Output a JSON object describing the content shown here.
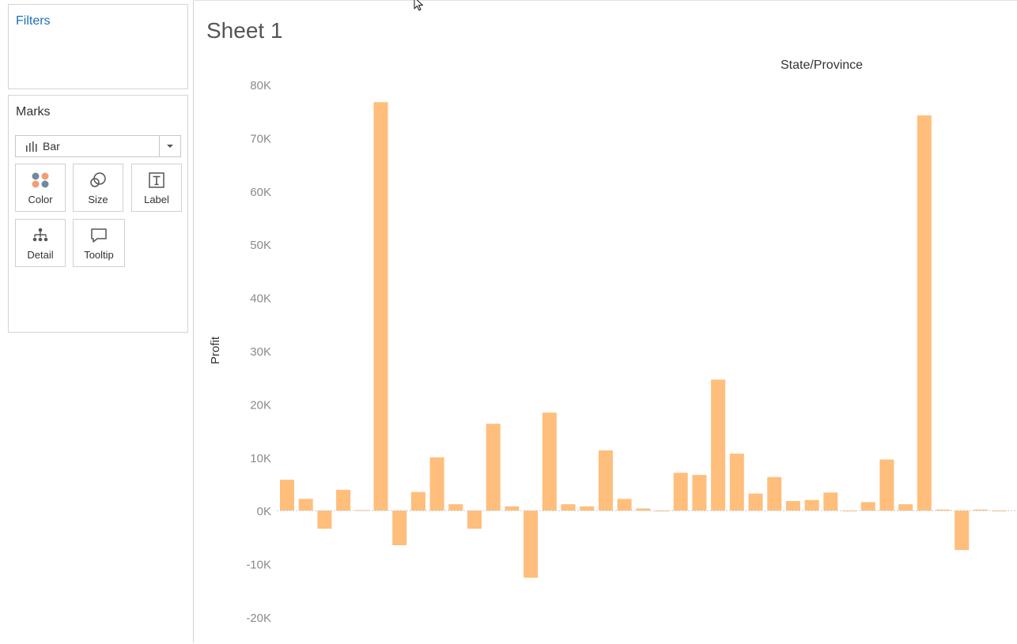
{
  "filters": {
    "title": "Filters"
  },
  "marks": {
    "title": "Marks",
    "mark_type": "Bar",
    "mark_type_icon": "bar-chart-icon",
    "cards": [
      {
        "label": "Color",
        "icon": "color-dots-icon"
      },
      {
        "label": "Size",
        "icon": "size-circles-icon"
      },
      {
        "label": "Label",
        "icon": "text-label-icon"
      },
      {
        "label": "Detail",
        "icon": "detail-hierarchy-icon"
      },
      {
        "label": "Tooltip",
        "icon": "tooltip-bubble-icon"
      }
    ]
  },
  "sheet": {
    "title": "Sheet 1",
    "column_header": "State/Province",
    "y_axis_label": "Profit"
  },
  "colors": {
    "bar": "#ffbe7b",
    "axis_tick": "#8a8a8a",
    "title_filters": "#1f6fb2"
  },
  "chart_data": {
    "type": "bar",
    "title": "",
    "xlabel": "State/Province",
    "ylabel": "Profit",
    "ylim": [
      -20000,
      80000
    ],
    "yticks": [
      "80K",
      "70K",
      "60K",
      "50K",
      "40K",
      "30K",
      "20K",
      "10K",
      "0K",
      "-10K",
      "-20K"
    ],
    "values": [
      5800,
      2200,
      -3400,
      3900,
      100,
      76700,
      -6500,
      3500,
      10000,
      1200,
      -3400,
      16300,
      800,
      -12600,
      18400,
      1200,
      800,
      11300,
      2200,
      400,
      -100,
      7100,
      6700,
      24600,
      10700,
      3200,
      6300,
      1800,
      2000,
      3400,
      -100,
      1600,
      9600,
      1200,
      74200,
      200,
      -7400,
      200,
      -100
    ]
  }
}
